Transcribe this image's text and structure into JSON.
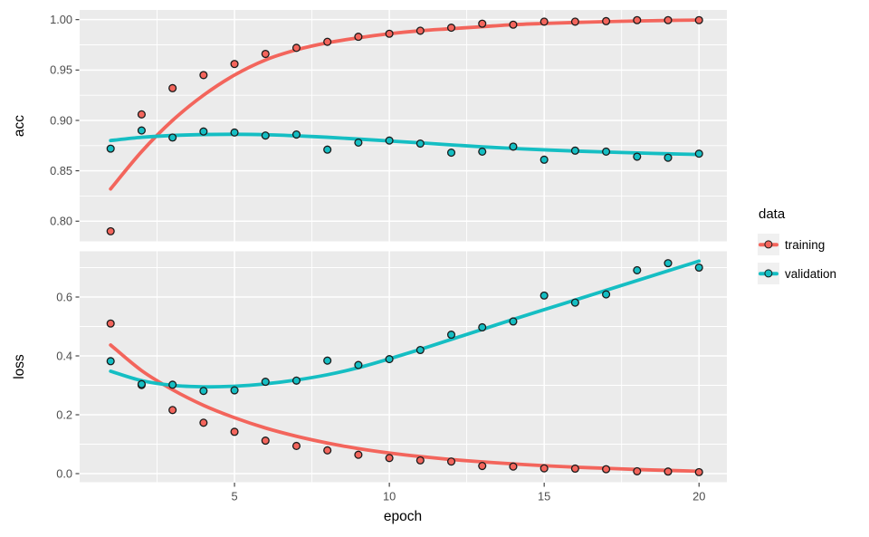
{
  "figure": {
    "panel_bg": "#EBEBEB",
    "grid_color": "#FFFFFF",
    "axis_text_color": "#4D4D4D",
    "tick_color": "#333333",
    "point_stroke": "#1A1A1A"
  },
  "legend": {
    "title": "data",
    "items": [
      {
        "label": "training",
        "color": "#F3655C"
      },
      {
        "label": "validation",
        "color": "#15BEC3"
      }
    ]
  },
  "x_axis": {
    "label": "epoch",
    "xlim": [
      0,
      20.9
    ],
    "ticks": [
      {
        "label": "5",
        "value": 5
      },
      {
        "label": "10",
        "value": 10
      },
      {
        "label": "15",
        "value": 15
      },
      {
        "label": "20",
        "value": 20
      }
    ],
    "minor_ticks": [
      2.5,
      7.5,
      12.5,
      17.5
    ]
  },
  "chart_data": [
    {
      "type": "scatter",
      "metric": "acc",
      "ylabel": "acc",
      "ylim": [
        0.78,
        1.0096
      ],
      "yticks": [
        {
          "label": "1.00",
          "value": 1.0
        },
        {
          "label": "0.95",
          "value": 0.95
        },
        {
          "label": "0.90",
          "value": 0.9
        },
        {
          "label": "0.85",
          "value": 0.85
        },
        {
          "label": "0.80",
          "value": 0.8
        }
      ],
      "minor_yticks": [
        0.825,
        0.875,
        0.925,
        0.975
      ],
      "x": [
        1,
        2,
        3,
        4,
        5,
        6,
        7,
        8,
        9,
        10,
        11,
        12,
        13,
        14,
        15,
        16,
        17,
        18,
        19,
        20
      ],
      "series": [
        {
          "name": "training",
          "color": "#F3655C",
          "points": [
            0.79,
            0.906,
            0.932,
            0.945,
            0.956,
            0.966,
            0.972,
            0.978,
            0.983,
            0.986,
            0.989,
            0.992,
            0.996,
            0.995,
            0.998,
            0.998,
            0.9985,
            0.9995,
            0.9995,
            0.9995
          ],
          "smooth": [
            0.832,
            0.869,
            0.9,
            0.925,
            0.945,
            0.96,
            0.97,
            0.977,
            0.982,
            0.986,
            0.989,
            0.991,
            0.993,
            0.995,
            0.9962,
            0.9972,
            0.998,
            0.9987,
            0.9992,
            0.9996
          ]
        },
        {
          "name": "validation",
          "color": "#15BEC3",
          "points": [
            0.872,
            0.89,
            0.883,
            0.889,
            0.888,
            0.885,
            0.886,
            0.871,
            0.878,
            0.88,
            0.877,
            0.868,
            0.869,
            0.874,
            0.861,
            0.87,
            0.869,
            0.864,
            0.863,
            0.867
          ],
          "smooth": [
            0.88,
            0.8832,
            0.8851,
            0.886,
            0.8862,
            0.8858,
            0.8847,
            0.8833,
            0.8815,
            0.8796,
            0.8777,
            0.8757,
            0.8738,
            0.8722,
            0.8708,
            0.8696,
            0.8686,
            0.8677,
            0.8669,
            0.8662
          ]
        }
      ]
    },
    {
      "type": "scatter",
      "metric": "loss",
      "ylabel": "loss",
      "ylim": [
        -0.0292,
        0.7554
      ],
      "yticks": [
        {
          "label": "0.6",
          "value": 0.6
        },
        {
          "label": "0.4",
          "value": 0.4
        },
        {
          "label": "0.2",
          "value": 0.2
        },
        {
          "label": "0.0",
          "value": 0.0
        }
      ],
      "minor_yticks": [
        0.1,
        0.3,
        0.5,
        0.7
      ],
      "x": [
        1,
        2,
        3,
        4,
        5,
        6,
        7,
        8,
        9,
        10,
        11,
        12,
        13,
        14,
        15,
        16,
        17,
        18,
        19,
        20
      ],
      "series": [
        {
          "name": "training",
          "color": "#F3655C",
          "points": [
            0.51,
            0.301,
            0.216,
            0.173,
            0.142,
            0.112,
            0.094,
            0.079,
            0.064,
            0.053,
            0.045,
            0.041,
            0.026,
            0.024,
            0.018,
            0.017,
            0.015,
            0.008,
            0.007,
            0.005
          ],
          "smooth": [
            0.437,
            0.35,
            0.285,
            0.232,
            0.19,
            0.155,
            0.127,
            0.104,
            0.085,
            0.07,
            0.058,
            0.048,
            0.04,
            0.033,
            0.027,
            0.022,
            0.018,
            0.014,
            0.011,
            0.008
          ]
        },
        {
          "name": "validation",
          "color": "#15BEC3",
          "points": [
            0.382,
            0.304,
            0.302,
            0.281,
            0.283,
            0.312,
            0.316,
            0.384,
            0.369,
            0.389,
            0.42,
            0.472,
            0.497,
            0.517,
            0.605,
            0.581,
            0.609,
            0.691,
            0.715,
            0.7
          ],
          "smooth": [
            0.348,
            0.316,
            0.3,
            0.295,
            0.297,
            0.305,
            0.318,
            0.336,
            0.36,
            0.39,
            0.422,
            0.456,
            0.49,
            0.524,
            0.557,
            0.59,
            0.623,
            0.656,
            0.689,
            0.722
          ]
        }
      ]
    }
  ]
}
